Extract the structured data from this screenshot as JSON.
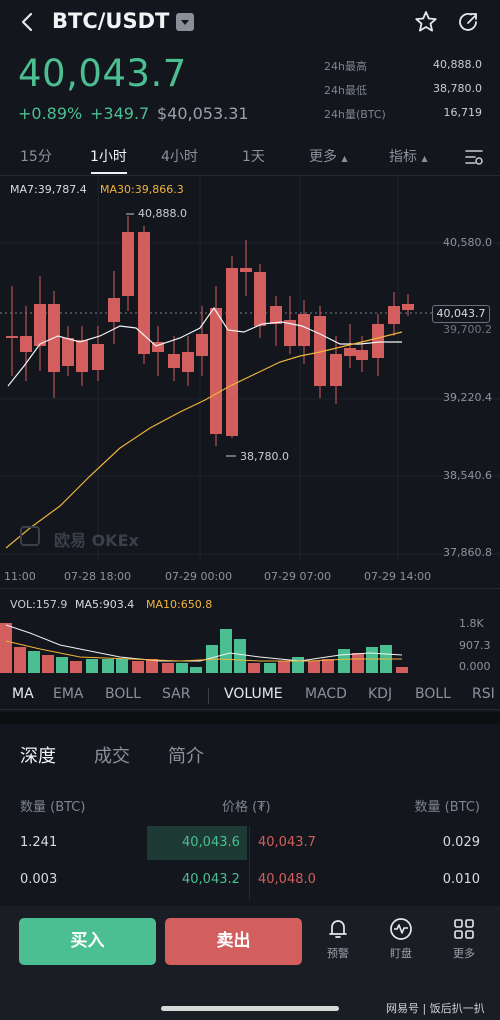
{
  "header": {
    "pair": "BTC/USDT",
    "icons": {
      "back": "back-arrow-icon",
      "dropdown": "caret-down-icon",
      "favorite": "star-icon",
      "share": "share-icon"
    }
  },
  "ticker": {
    "last_price": "40,043.7",
    "change_pct": "+0.89%",
    "change_abs": "+349.7",
    "usd_price": "$40,053.31",
    "stats": [
      {
        "label": "24h最高",
        "value": "40,888.0"
      },
      {
        "label": "24h最低",
        "value": "38,780.0"
      },
      {
        "label": "24h量(BTC)",
        "value": "16,719"
      }
    ]
  },
  "intervals": [
    "15分",
    "1小时",
    "4小时",
    "1天",
    "更多",
    "指标"
  ],
  "active_interval": "1小时",
  "chart": {
    "legend_ma7": "MA7:39,787.4",
    "legend_ma30": "MA30:39,866.3",
    "price_axis": [
      "40,580.0",
      "39,220.4",
      "38,540.6",
      "37,860.8"
    ],
    "partial_axis": "39,700.2",
    "current_tag": "40,043.7",
    "high_label": "40,888.0",
    "low_label": "38,780.0",
    "time_axis": [
      "11:00",
      "07-28 18:00",
      "07-29 00:00",
      "07-29 07:00",
      "07-29 14:00"
    ],
    "watermark": "欧易 OKEx",
    "colors": {
      "up": "#4bbf91",
      "down": "#d35e5e",
      "ma7": "#ffffff",
      "ma30": "#f0b43c"
    }
  },
  "volume": {
    "legend_vol": "VOL:157.9",
    "legend_ma5": "MA5:903.4",
    "legend_ma10": "MA10:650.8",
    "axis": [
      "1.8K",
      "907.3",
      "0.000"
    ]
  },
  "indicators": [
    "MA",
    "EMA",
    "BOLL",
    "SAR",
    "VOLUME",
    "MACD",
    "KDJ",
    "BOLL",
    "RSI"
  ],
  "active_indicators": [
    "MA",
    "VOLUME"
  ],
  "depth": {
    "tabs": [
      "深度",
      "成交",
      "简介"
    ],
    "headers": {
      "bid_qty": "数量 (BTC)",
      "price": "价格 (₮)",
      "ask_qty": "数量 (BTC)"
    },
    "rows": [
      {
        "bid_qty": "1.241",
        "bid_price": "40,043.6",
        "ask_price": "40,043.7",
        "ask_qty": "0.029"
      },
      {
        "bid_qty": "0.003",
        "bid_price": "40,043.2",
        "ask_price": "40,048.0",
        "ask_qty": "0.010"
      }
    ]
  },
  "actions": {
    "buy": "买入",
    "sell": "卖出"
  },
  "bottom_nav": [
    {
      "label": "预警",
      "icon": "bell-icon"
    },
    {
      "label": "盯盘",
      "icon": "pulse-icon"
    },
    {
      "label": "更多",
      "icon": "grid-icon"
    }
  ],
  "footer_watermark": "网易号 | 饭后扒一扒"
}
